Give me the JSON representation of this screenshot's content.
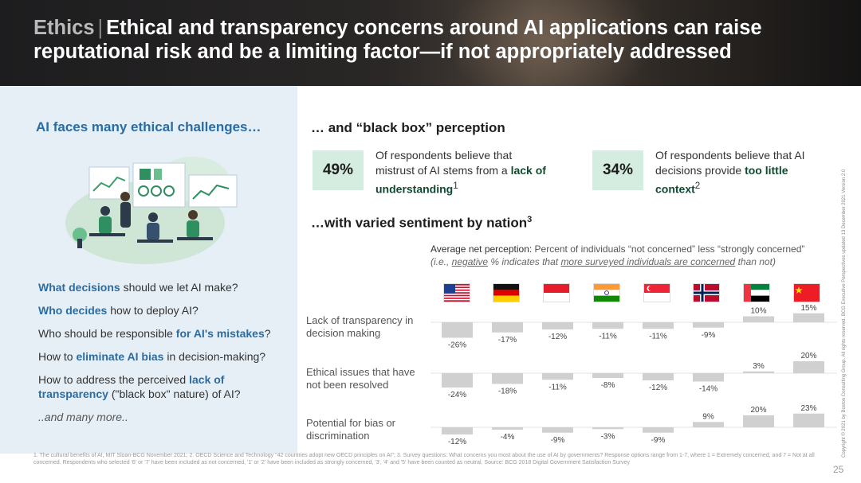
{
  "header": {
    "keyword": "Ethics",
    "separator": "|",
    "title": "Ethical and transparency concerns around AI applications can raise reputational risk and be a limiting factor—if not appropriately addressed"
  },
  "left": {
    "heading": "AI faces many ethical challenges…",
    "questions": [
      {
        "pre": "",
        "bold": "What decisions",
        "post": " should we let AI make?"
      },
      {
        "pre": "",
        "bold": "Who decides",
        "post": " how to deploy AI?"
      },
      {
        "pre": "Who should be responsible ",
        "bold": "for AI's mistakes",
        "post": "?"
      },
      {
        "pre": "How to ",
        "bold": "eliminate AI bias",
        "post": " in decision-making?"
      },
      {
        "pre": "How to address the perceived ",
        "bold": "lack of transparency",
        "post": " (\"black box\" nature) of AI?"
      }
    ],
    "more": "..and many more.."
  },
  "blackbox": {
    "heading": "… and “black box” perception",
    "stats": [
      {
        "value": "49%",
        "text": "Of respondents believe that mistrust of AI stems from a",
        "bold": "lack of understanding",
        "sup": "1"
      },
      {
        "value": "34%",
        "text": "Of respondents believe that AI decisions provide",
        "bold": "too little context",
        "sup": "2"
      }
    ]
  },
  "nation": {
    "heading": "…with varied sentiment by nation",
    "heading_sup": "3",
    "desc_lead": "Average net perception:",
    "desc_rest": " Percent of individuals “not concerned” less “strongly concerned”",
    "desc_note_1": "(i.e., ",
    "desc_note_neg": "negative",
    "desc_note_2": " % indicates that ",
    "desc_note_more": "more surveyed individuals are concerned",
    "desc_note_3": " than not)",
    "flags": [
      "united-states-flag",
      "germany-flag",
      "indonesia-flag",
      "india-flag",
      "singapore-flag",
      "norway-flag",
      "uae-flag",
      "china-flag"
    ]
  },
  "chart_data": {
    "type": "bar",
    "categories": [
      "United States",
      "Germany",
      "Indonesia",
      "India",
      "Singapore",
      "Norway",
      "UAE",
      "China"
    ],
    "series": [
      {
        "name": "Lack of transparency in decision making",
        "values": [
          -26,
          -17,
          -12,
          -11,
          -11,
          -9,
          10,
          15
        ]
      },
      {
        "name": "Ethical issues that have not been resolved",
        "values": [
          -24,
          -18,
          -11,
          -8,
          -12,
          -14,
          3,
          20
        ]
      },
      {
        "name": "Potential for bias or discrimination",
        "values": [
          -12,
          -4,
          -9,
          -3,
          -9,
          9,
          20,
          23
        ]
      }
    ],
    "value_labels": [
      [
        "-26%",
        "-17%",
        "-12%",
        "-11%",
        "-11%",
        "-9%",
        "10%",
        "15%"
      ],
      [
        "-24%",
        "-18%",
        "-11%",
        "-8%",
        "-12%",
        "-14%",
        "3%",
        "20%"
      ],
      [
        "-12%",
        "-4%",
        "-9%",
        "-3%",
        "-9%",
        "9%",
        "20%",
        "23%"
      ]
    ],
    "bar_color": "#d0d0d0"
  },
  "footnote": "1. The cultural benefits of AI, MIT Sloan-BCG November 2021; 2. OECD Science and Technology \"42 countries adopt new OECD principles on AI\"; 3. Survey questions: What concerns you most about the use of AI by governments? Response options range from 1-7, where 1 = Extremely concerned, and 7 = Not at all concerned. Respondents who selected '6' or '7' have been included as not concerned, '1' or '2' have been included as strongly concerned, '3', '4' and '5' have been counted as neutral. Source: BCG 2018 Digital Government Satisfaction Survey",
  "page_number": "25",
  "copyright": "Copyright © 2021 by Boston Consulting Group. All rights reserved. BCG Executive Perspectives updated 13 December 2021 Version 2.0"
}
